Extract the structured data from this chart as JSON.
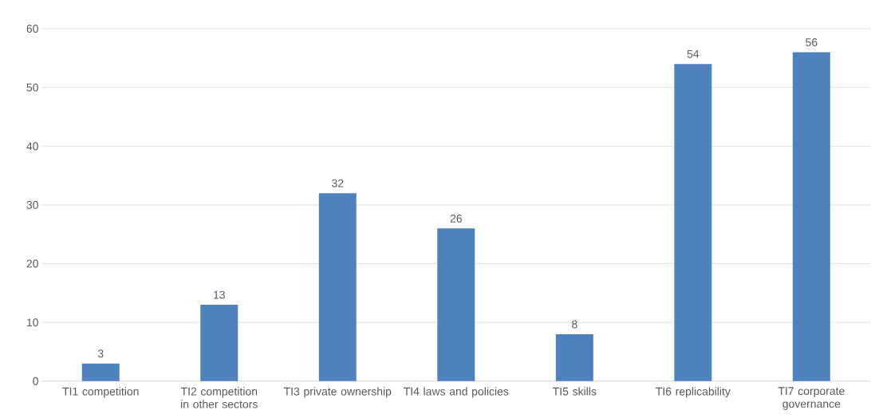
{
  "chart_data": {
    "type": "bar",
    "categories": [
      "TI1 competition",
      "TI2 competition in other sectors",
      "TI3 private ownership",
      "TI4 laws and policies",
      "TI5 skills",
      "TI6 replicability",
      "TI7 corporate governance"
    ],
    "values": [
      3,
      13,
      32,
      26,
      8,
      54,
      56
    ],
    "color": "#4f81bd",
    "ylim": [
      0,
      60
    ],
    "yticks": [
      0,
      10,
      20,
      30,
      40,
      50,
      60
    ],
    "grid": "y",
    "data_labels": true
  }
}
